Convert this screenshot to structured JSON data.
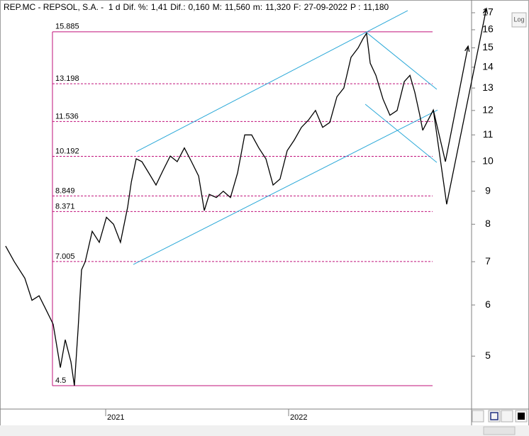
{
  "chart_data": {
    "type": "line",
    "header": [
      {
        "text": "REP.MC - REPSOL, S.A. -  1 d",
        "color": "#000000"
      },
      {
        "text": "Dif. %:",
        "color": "#000000"
      },
      {
        "text": "1,41",
        "color": "#3a8fd8"
      },
      {
        "text": "Dif.:",
        "color": "#000000"
      },
      {
        "text": "0,160",
        "color": "#3a8fd8"
      },
      {
        "text": "M:",
        "color": "#000000"
      },
      {
        "text": "11,560",
        "color": "#000000"
      },
      {
        "text": "m:",
        "color": "#000000"
      },
      {
        "text": "11,320",
        "color": "#000000"
      },
      {
        "text": "F:",
        "color": "#000000"
      },
      {
        "text": "27-09-2022",
        "color": "#000000"
      },
      {
        "text": "P :",
        "color": "#e01010"
      },
      {
        "text": "11,180",
        "color": "#e01010"
      }
    ],
    "log_scale": true,
    "scale_button": "Log",
    "xlim": [
      2020.43,
      2023.0
    ],
    "xticks": [
      2021,
      2022
    ],
    "ylim": [
      4.14,
      17.7
    ],
    "yticks": [
      5,
      6,
      7,
      8,
      9,
      10,
      11,
      12,
      13,
      14,
      15,
      16,
      17
    ],
    "series": [
      {
        "color": "#000000",
        "x": [
          2020.453,
          2020.5,
          2020.558,
          2020.597,
          2020.636,
          2020.674,
          2020.713,
          2020.752,
          2020.779,
          2020.81,
          2020.829,
          2020.849,
          2020.868,
          2020.888,
          2020.926,
          2020.965,
          2021.004,
          2021.043,
          2021.081,
          2021.12,
          2021.14,
          2021.167,
          2021.198,
          2021.236,
          2021.275,
          2021.314,
          2021.353,
          2021.391,
          2021.43,
          2021.469,
          2021.508,
          2021.539,
          2021.566,
          2021.605,
          2021.643,
          2021.682,
          2021.721,
          2021.76,
          2021.798,
          2021.837,
          2021.876,
          2021.915,
          2021.953,
          2021.992,
          2022.031,
          2022.07,
          2022.109,
          2022.147,
          2022.186,
          2022.225,
          2022.264,
          2022.302,
          2022.341,
          2022.38,
          2022.407,
          2022.426,
          2022.446,
          2022.477,
          2022.516,
          2022.554,
          2022.593,
          2022.632,
          2022.663,
          2022.69,
          2022.717,
          2022.733
        ],
        "values": [
          7.4,
          7.0,
          6.6,
          6.1,
          6.2,
          5.9,
          5.6,
          4.8,
          5.3,
          4.9,
          4.5,
          5.5,
          6.8,
          7.0,
          7.8,
          7.5,
          8.2,
          8.0,
          7.5,
          8.5,
          9.3,
          10.1,
          10.0,
          9.6,
          9.2,
          9.7,
          10.2,
          10.0,
          10.5,
          10.0,
          9.5,
          8.4,
          8.9,
          8.8,
          9.0,
          8.8,
          9.6,
          11.0,
          11.0,
          10.5,
          10.1,
          9.2,
          9.4,
          10.4,
          10.8,
          11.3,
          11.6,
          12.0,
          11.3,
          11.5,
          12.6,
          13.0,
          14.5,
          15.0,
          15.5,
          15.8,
          14.2,
          13.6,
          12.5,
          11.8,
          12.0,
          13.3,
          13.6,
          12.8,
          11.8,
          11.18
        ]
      }
    ],
    "levels_color": "#c0107a",
    "levels_x": [
      2020.709,
      2022.787
    ],
    "levels": [
      {
        "value": 15.885,
        "dashed": false
      },
      {
        "value": 13.198,
        "dashed": true
      },
      {
        "value": 11.536,
        "dashed": true
      },
      {
        "value": 10.192,
        "dashed": true
      },
      {
        "value": 8.849,
        "dashed": true
      },
      {
        "value": 8.371,
        "dashed": true
      },
      {
        "value": 7.005,
        "dashed": true
      },
      {
        "value": 4.5,
        "dashed": false
      }
    ],
    "trend_color": "#2aa8d8",
    "trend_lines": [
      {
        "x": [
          2021.167,
          2022.651
        ],
        "y": [
          10.36,
          17.13
        ]
      },
      {
        "x": [
          2021.151,
          2022.814
        ],
        "y": [
          6.93,
          12.02
        ]
      },
      {
        "x": [
          2022.426,
          2022.81
        ],
        "y": [
          15.84,
          12.94
        ]
      },
      {
        "x": [
          2022.419,
          2022.81
        ],
        "y": [
          12.27,
          9.97
        ]
      }
    ],
    "forecast_color": "#000000",
    "forecasts": [
      {
        "x": [
          2022.733,
          2022.791,
          2022.857,
          2022.981
        ],
        "y": [
          11.18,
          12.02,
          10.0,
          15.09
        ]
      },
      {
        "x": [
          2022.791,
          2022.864,
          2023.081
        ],
        "y": [
          12.02,
          8.59,
          17.26
        ]
      }
    ]
  }
}
